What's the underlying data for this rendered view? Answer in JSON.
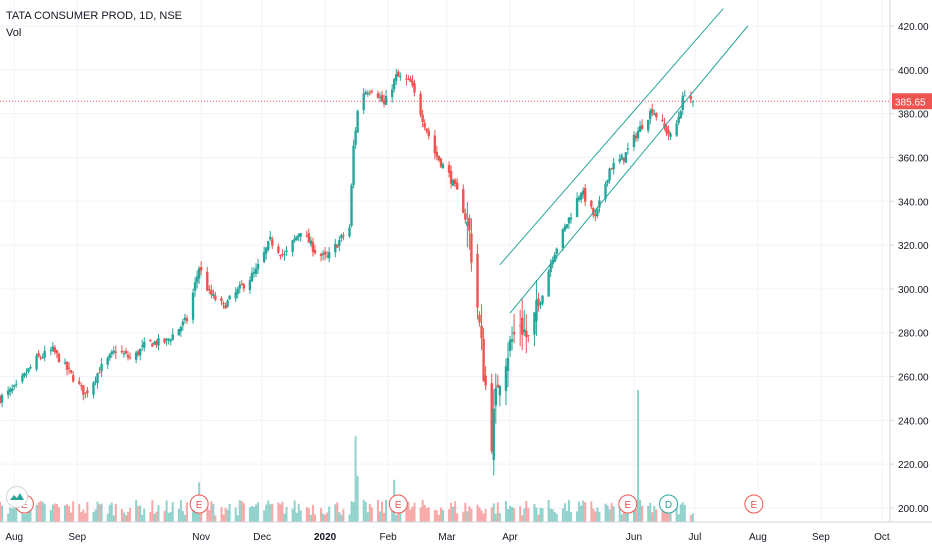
{
  "header": {
    "symbol_line": "TATA CONSUMER PROD, 1D, NSE",
    "volume_label": "Vol"
  },
  "colors": {
    "up": "#26a69a",
    "down": "#ef5350",
    "price_line": "#ef5350",
    "channel": "#26a69a",
    "grid": "#f0f3fa",
    "axis_text": "#131722",
    "event_earnings": "#ef5350",
    "event_dividend": "#26a69a"
  },
  "price_tag": "385.65",
  "icons": {
    "logo": "tradingview-logo-icon"
  },
  "chart_data": {
    "type": "candlestick",
    "title": "TATA CONSUMER PROD, 1D, NSE",
    "date_range": [
      "2019-07-25",
      "2020-10-05"
    ],
    "ylim": [
      195,
      428
    ],
    "y_ticks": [
      200,
      220,
      240,
      260,
      280,
      300,
      320,
      340,
      360,
      380,
      400,
      420
    ],
    "y_tick_labels": [
      "200.00",
      "220.00",
      "240.00",
      "260.00",
      "280.00",
      "300.00",
      "320.00",
      "340.00",
      "360.00",
      "380.00",
      "400.00",
      "420.00"
    ],
    "x_ticks": [
      {
        "label": "Aug",
        "date": "2019-08-01"
      },
      {
        "label": "Sep",
        "date": "2019-09-01"
      },
      {
        "label": "Nov",
        "date": "2019-11-01"
      },
      {
        "label": "Dec",
        "date": "2019-12-01"
      },
      {
        "label": "2020",
        "date": "2020-01-01"
      },
      {
        "label": "Feb",
        "date": "2020-02-01"
      },
      {
        "label": "Mar",
        "date": "2020-03-01"
      },
      {
        "label": "Apr",
        "date": "2020-04-01"
      },
      {
        "label": "Jun",
        "date": "2020-06-01"
      },
      {
        "label": "Jul",
        "date": "2020-07-01"
      },
      {
        "label": "Aug",
        "date": "2020-08-01"
      },
      {
        "label": "Sep",
        "date": "2020-09-01"
      },
      {
        "label": "Oct",
        "date": "2020-10-01"
      }
    ],
    "last_price": 385.65,
    "data_start": "2019-07-25",
    "data_end": "2020-06-30",
    "close_anchors": [
      [
        "2019-07-25",
        250
      ],
      [
        "2019-08-02",
        255
      ],
      [
        "2019-08-12",
        268
      ],
      [
        "2019-08-20",
        272
      ],
      [
        "2019-08-28",
        262
      ],
      [
        "2019-09-05",
        252
      ],
      [
        "2019-09-12",
        263
      ],
      [
        "2019-09-20",
        272
      ],
      [
        "2019-09-28",
        268
      ],
      [
        "2019-10-05",
        275
      ],
      [
        "2019-10-15",
        276
      ],
      [
        "2019-10-25",
        286
      ],
      [
        "2019-10-31",
        310
      ],
      [
        "2019-11-05",
        298
      ],
      [
        "2019-11-12",
        292
      ],
      [
        "2019-11-20",
        300
      ],
      [
        "2019-11-28",
        308
      ],
      [
        "2019-12-05",
        322
      ],
      [
        "2019-12-12",
        315
      ],
      [
        "2019-12-20",
        327
      ],
      [
        "2019-12-28",
        316
      ],
      [
        "2020-01-02",
        314
      ],
      [
        "2020-01-08",
        322
      ],
      [
        "2020-01-13",
        328
      ],
      [
        "2020-01-15",
        365
      ],
      [
        "2020-01-18",
        389
      ],
      [
        "2020-01-25",
        392
      ],
      [
        "2020-01-30",
        384
      ],
      [
        "2020-02-05",
        397
      ],
      [
        "2020-02-12",
        394
      ],
      [
        "2020-02-18",
        378
      ],
      [
        "2020-02-24",
        362
      ],
      [
        "2020-03-02",
        352
      ],
      [
        "2020-03-08",
        340
      ],
      [
        "2020-03-12",
        325
      ],
      [
        "2020-03-16",
        292
      ],
      [
        "2020-03-19",
        263
      ],
      [
        "2020-03-23",
        232
      ],
      [
        "2020-03-26",
        258
      ],
      [
        "2020-03-30",
        270
      ],
      [
        "2020-04-06",
        285
      ],
      [
        "2020-04-10",
        276
      ],
      [
        "2020-04-15",
        292
      ],
      [
        "2020-04-22",
        315
      ],
      [
        "2020-04-29",
        330
      ],
      [
        "2020-05-06",
        345
      ],
      [
        "2020-05-13",
        332
      ],
      [
        "2020-05-20",
        355
      ],
      [
        "2020-05-27",
        360
      ],
      [
        "2020-06-03",
        372
      ],
      [
        "2020-06-10",
        382
      ],
      [
        "2020-06-15",
        375
      ],
      [
        "2020-06-20",
        368
      ],
      [
        "2020-06-26",
        390
      ],
      [
        "2020-06-30",
        385.65
      ]
    ],
    "volume_spikes": [
      {
        "date": "2019-10-31",
        "rel": 0.3
      },
      {
        "date": "2020-01-16",
        "rel": 0.65
      },
      {
        "date": "2020-01-17",
        "rel": 0.35
      },
      {
        "date": "2020-02-04",
        "rel": 0.32
      },
      {
        "date": "2020-06-03",
        "rel": 1.0
      }
    ],
    "channel_lines": [
      {
        "p1": {
          "date": "2020-03-27",
          "price": 311
        },
        "p2": {
          "date": "2020-07-15",
          "price": 428
        }
      },
      {
        "p1": {
          "date": "2020-04-01",
          "price": 289
        },
        "p2": {
          "date": "2020-07-27",
          "price": 420
        }
      }
    ],
    "events": [
      {
        "label": "E",
        "date": "2019-08-06",
        "kind": "earnings"
      },
      {
        "label": "E",
        "date": "2019-10-31",
        "kind": "earnings"
      },
      {
        "label": "E",
        "date": "2020-02-06",
        "kind": "earnings"
      },
      {
        "label": "E",
        "date": "2020-05-29",
        "kind": "earnings"
      },
      {
        "label": "D",
        "date": "2020-06-18",
        "kind": "dividend"
      },
      {
        "label": "E",
        "date": "2020-07-30",
        "kind": "earnings"
      }
    ]
  }
}
